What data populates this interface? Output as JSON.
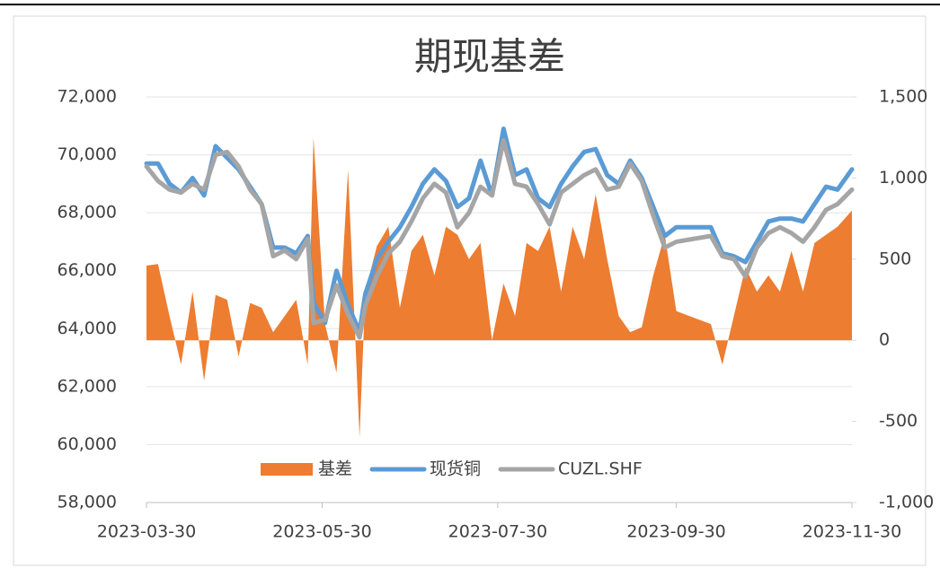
{
  "chart_data": {
    "type": "combo",
    "title": "期现基差",
    "x": [
      "2023-03-30",
      "2023-04-03",
      "2023-04-07",
      "2023-04-11",
      "2023-04-15",
      "2023-04-19",
      "2023-04-23",
      "2023-04-27",
      "2023-05-01",
      "2023-05-05",
      "2023-05-09",
      "2023-05-13",
      "2023-05-17",
      "2023-05-21",
      "2023-05-25",
      "2023-05-27",
      "2023-05-31",
      "2023-06-04",
      "2023-06-08",
      "2023-06-12",
      "2023-06-14",
      "2023-06-18",
      "2023-06-22",
      "2023-06-26",
      "2023-06-30",
      "2023-07-04",
      "2023-07-08",
      "2023-07-12",
      "2023-07-16",
      "2023-07-20",
      "2023-07-24",
      "2023-07-28",
      "2023-08-01",
      "2023-08-05",
      "2023-08-09",
      "2023-08-13",
      "2023-08-17",
      "2023-08-21",
      "2023-08-25",
      "2023-08-29",
      "2023-09-02",
      "2023-09-06",
      "2023-09-10",
      "2023-09-14",
      "2023-09-18",
      "2023-09-22",
      "2023-09-26",
      "2023-09-30",
      "2023-10-12",
      "2023-10-16",
      "2023-10-20",
      "2023-10-24",
      "2023-10-28",
      "2023-11-01",
      "2023-11-05",
      "2023-11-09",
      "2023-11-13",
      "2023-11-17",
      "2023-11-21",
      "2023-11-25",
      "2023-11-30"
    ],
    "series": [
      {
        "name": "基差",
        "type": "area",
        "axis": "y2",
        "color": "#ed7d31",
        "values": [
          460,
          470,
          150,
          -150,
          300,
          -250,
          280,
          250,
          -100,
          230,
          200,
          50,
          150,
          250,
          -150,
          1250,
          100,
          -200,
          1050,
          -600,
          300,
          580,
          700,
          200,
          550,
          650,
          400,
          700,
          650,
          500,
          600,
          0,
          350,
          150,
          600,
          550,
          700,
          300,
          700,
          500,
          900,
          500,
          150,
          50,
          80,
          400,
          650,
          180,
          100,
          -150,
          150,
          450,
          300,
          400,
          300,
          550,
          300,
          600,
          650,
          700,
          800
        ]
      },
      {
        "name": "现货铜",
        "type": "line",
        "color": "#5b9bd5",
        "values": [
          69700,
          69700,
          69000,
          68700,
          69200,
          68600,
          70300,
          69900,
          69500,
          68900,
          68300,
          66800,
          66800,
          66600,
          67200,
          64900,
          64200,
          66000,
          64800,
          63900,
          65200,
          66400,
          67000,
          67500,
          68200,
          69000,
          69500,
          69100,
          68200,
          68500,
          69800,
          68600,
          70900,
          69300,
          69500,
          68500,
          68200,
          69000,
          69600,
          70100,
          70200,
          69300,
          69000,
          69800,
          69200,
          68200,
          67200,
          67500,
          67500,
          66600,
          66500,
          66300,
          67000,
          67700,
          67800,
          67800,
          67700,
          68300,
          68900,
          68800,
          69500
        ]
      },
      {
        "name": "CUZL.SHF",
        "type": "line",
        "color": "#a5a5a5",
        "values": [
          69600,
          69100,
          68800,
          68700,
          69000,
          68800,
          70000,
          70100,
          69600,
          68800,
          68300,
          66500,
          66700,
          66400,
          67100,
          64200,
          64300,
          65500,
          64500,
          63700,
          64800,
          65800,
          66600,
          67000,
          67700,
          68500,
          69000,
          68700,
          67500,
          68000,
          68900,
          68600,
          70500,
          69000,
          68900,
          68300,
          67600,
          68700,
          69000,
          69300,
          69500,
          68800,
          68900,
          69700,
          69100,
          67900,
          66800,
          67000,
          67200,
          66500,
          66400,
          65800,
          66800,
          67300,
          67500,
          67300,
          67000,
          67500,
          68100,
          68300,
          68800
        ]
      }
    ],
    "xlim": [
      "2023-03-30",
      "2023-11-30"
    ],
    "xticks": [
      "2023-03-30",
      "2023-05-30",
      "2023-07-30",
      "2023-09-30",
      "2023-11-30"
    ],
    "ylim": [
      58000,
      72000
    ],
    "yticks": [
      {
        "value": 58000,
        "label": "58,000"
      },
      {
        "value": 60000,
        "label": "60,000"
      },
      {
        "value": 62000,
        "label": "62,000"
      },
      {
        "value": 64000,
        "label": "64,000"
      },
      {
        "value": 66000,
        "label": "66,000"
      },
      {
        "value": 68000,
        "label": "68,000"
      },
      {
        "value": 70000,
        "label": "70,000"
      },
      {
        "value": 72000,
        "label": "72,000"
      }
    ],
    "y2lim": [
      -1000,
      1500
    ],
    "y2ticks": [
      {
        "value": -1000,
        "label": "-1,000"
      },
      -500,
      0,
      500,
      {
        "value": 1000,
        "label": "1,000"
      },
      {
        "value": 1500,
        "label": "1,500"
      }
    ],
    "grid": true,
    "legend": "bottom"
  }
}
